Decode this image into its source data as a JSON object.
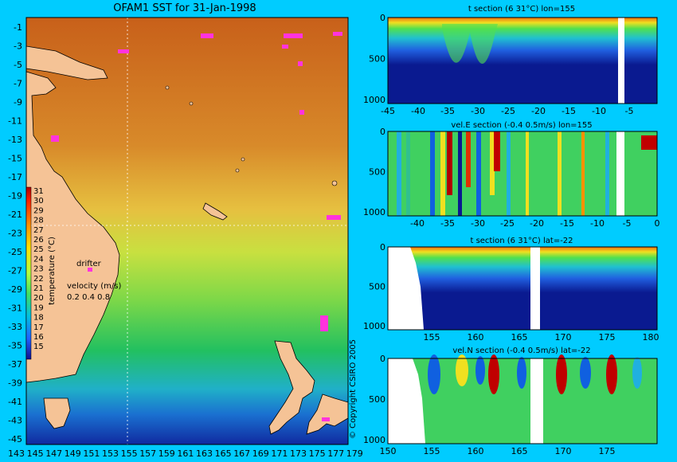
{
  "map": {
    "title": "OFAM1 SST for 31-Jan-1998",
    "lon_ticks": [
      "143",
      "145",
      "147",
      "149",
      "151",
      "153",
      "155",
      "157",
      "159",
      "161",
      "163",
      "165",
      "167",
      "169",
      "171",
      "173",
      "175",
      "177",
      "179"
    ],
    "lat_ticks": [
      "-1",
      "-3",
      "-5",
      "-7",
      "-9",
      "-11",
      "-13",
      "-15",
      "-17",
      "-19",
      "-21",
      "-23",
      "-25",
      "-27",
      "-29",
      "-31",
      "-33",
      "-35",
      "-37",
      "-39",
      "-41",
      "-43",
      "-45"
    ],
    "colorbar": {
      "label": "temperature (°C)",
      "ticks": [
        "31",
        "30",
        "29",
        "28",
        "27",
        "26",
        "25",
        "24",
        "23",
        "22",
        "21",
        "20",
        "19",
        "18",
        "17",
        "16",
        "15"
      ]
    },
    "drifter_label": "drifter",
    "velocity_label": "velocity (m/s)",
    "velocity_scale": "0.2 0.4 0.8",
    "copyright": "© Copyright CSIRO 2005",
    "colors": {
      "land": "#f5c396",
      "warm": "#d2691e",
      "cool": "#1030a0",
      "drifter": "#ff33dd"
    }
  },
  "panels": [
    {
      "title": "t section (6      31°C) lon=155",
      "xticks": [
        "-45",
        "-40",
        "-35",
        "-30",
        "-25",
        "-20",
        "-15",
        "-10",
        "-5"
      ],
      "yticks": [
        "0",
        "500",
        "1000"
      ]
    },
    {
      "title": "vel.E section (-0.4      0.5m/s) lon=155",
      "xticks": [
        "-40",
        "-35",
        "-30",
        "-25",
        "-20",
        "-15",
        "-10",
        "-5",
        "0"
      ],
      "yticks": [
        "0",
        "500",
        "1000"
      ]
    },
    {
      "title": "t section (6      31°C) lat=-22",
      "xticks": [
        "155",
        "160",
        "165",
        "170",
        "175",
        "180"
      ],
      "yticks": [
        "0",
        "500",
        "1000"
      ]
    },
    {
      "title": "vel.N section (-0.4      0.5m/s) lat=-22",
      "xticks": [
        "150",
        "155",
        "160",
        "165",
        "170",
        "175"
      ],
      "yticks": [
        "0",
        "500",
        "1000"
      ]
    }
  ]
}
